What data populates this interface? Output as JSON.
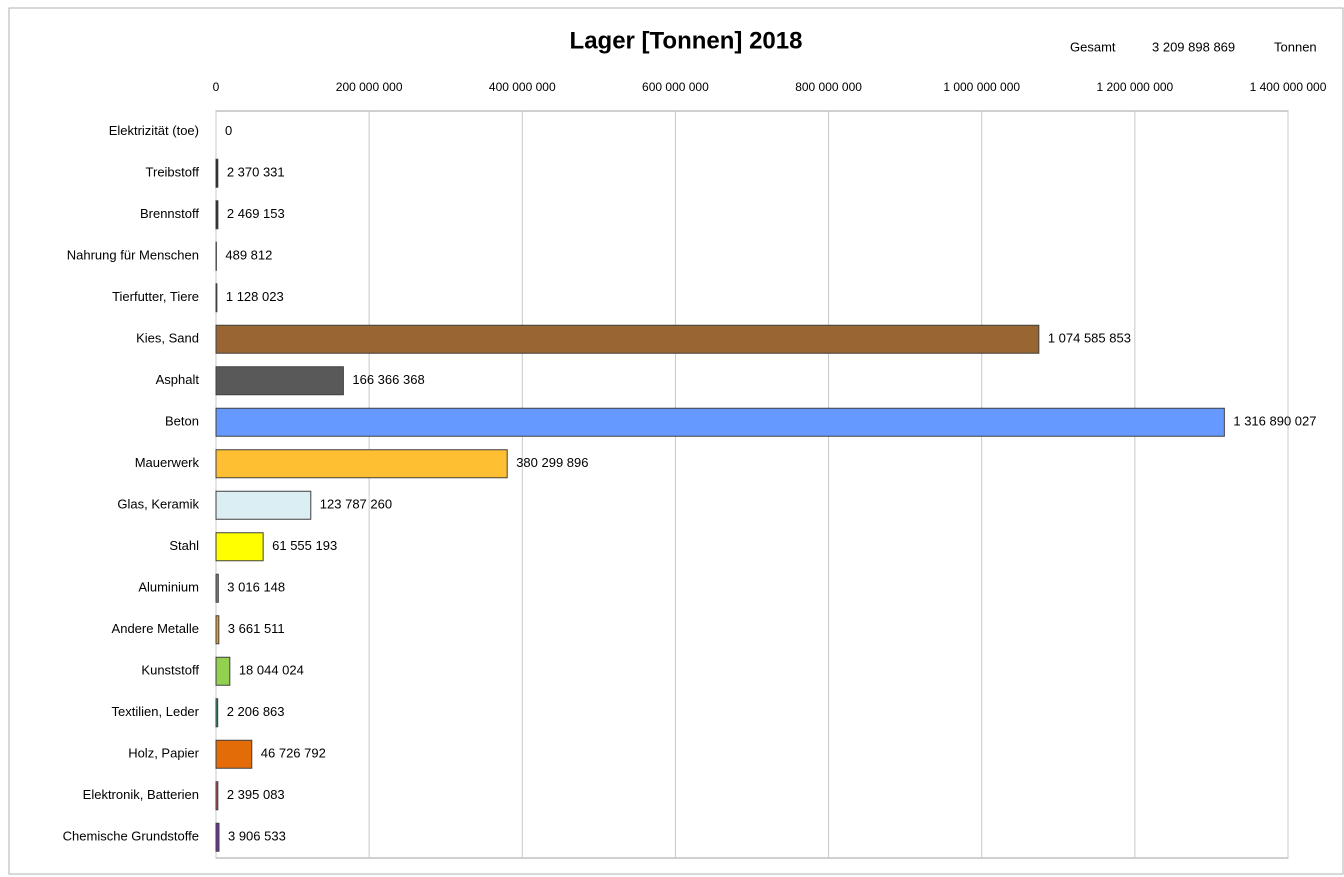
{
  "chart_data": {
    "type": "bar",
    "orientation": "horizontal",
    "title": "Lager [Tonnen] 2018",
    "annotation": {
      "label": "Gesamt",
      "value": "3 209 898 869",
      "unit": "Tonnen"
    },
    "categories": [
      "Elektrizität (toe)",
      "Treibstoff",
      "Brennstoff",
      "Nahrung für Menschen",
      "Tierfutter, Tiere",
      "Kies, Sand",
      "Asphalt",
      "Beton",
      "Mauerwerk",
      "Glas, Keramik",
      "Stahl",
      "Aluminium",
      "Andere Metalle",
      "Kunststoff",
      "Textilien, Leder",
      "Holz, Papier",
      "Elektronik, Batterien",
      "Chemische Grundstoffe"
    ],
    "values": [
      0,
      2370331,
      2469153,
      489812,
      1128023,
      1074585853,
      166366368,
      1316890027,
      380299896,
      123787260,
      61555193,
      3016148,
      3661511,
      18044024,
      2206863,
      46726792,
      2395083,
      3906533
    ],
    "value_labels": [
      "0",
      "2 370 331",
      "2 469 153",
      "489 812",
      "1 128 023",
      "1 074 585 853",
      "166 366 368",
      "1 316 890 027",
      "380 299 896",
      "123 787 260",
      "61 555 193",
      "3 016 148",
      "3 661 511",
      "18 044 024",
      "2 206 863",
      "46 726 792",
      "2 395 083",
      "3 906 533"
    ],
    "colors": [
      "#ffc000",
      "#1f1f1f",
      "#262626",
      "#bfbfbf",
      "#8c8c8c",
      "#996633",
      "#595959",
      "#6699ff",
      "#ffbf33",
      "#daeef3",
      "#ffff00",
      "#7f7f7f",
      "#e0a030",
      "#92d050",
      "#339966",
      "#e36c09",
      "#c0504d",
      "#7030a0"
    ],
    "xlim": [
      0,
      1400000000
    ],
    "xticks": [
      0,
      {
        "value": 200000000,
        "label": "200 000 000"
      },
      {
        "value": 400000000,
        "label": "400 000 000"
      },
      {
        "value": 600000000,
        "label": "600 000 000"
      },
      {
        "value": 800000000,
        "label": "800 000 000"
      },
      {
        "value": 1000000000,
        "label": "1 000 000 000"
      },
      {
        "value": 1200000000,
        "label": "1 200 000 000"
      },
      {
        "value": 1400000000,
        "label": "1 400 000 000"
      }
    ],
    "grid": true
  }
}
